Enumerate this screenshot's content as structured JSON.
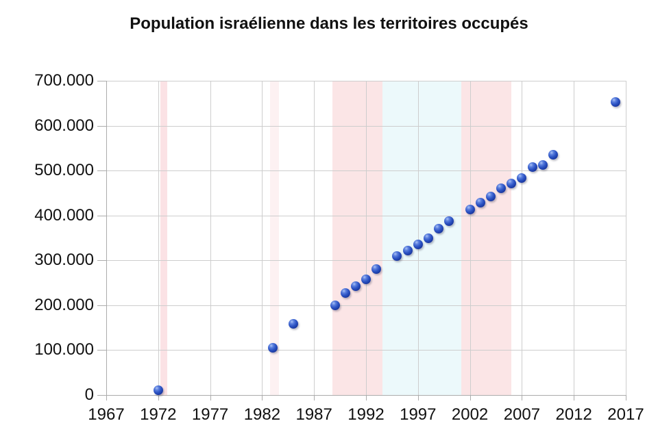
{
  "title": "Population israélienne dans les territoires occupés",
  "chart_data": {
    "type": "scatter",
    "title": "Population israélienne dans les territoires occupés",
    "xlabel": "",
    "ylabel": "",
    "xlim": [
      1967,
      2017
    ],
    "ylim": [
      0,
      700000
    ],
    "grid": true,
    "legend": "none",
    "x_ticks": [
      {
        "value": 1967,
        "label": "1967"
      },
      {
        "value": 1972,
        "label": "1972"
      },
      {
        "value": 1977,
        "label": "1977"
      },
      {
        "value": 1982,
        "label": "1982"
      },
      {
        "value": 1987,
        "label": "1987"
      },
      {
        "value": 1992,
        "label": "1992"
      },
      {
        "value": 1997,
        "label": "1997"
      },
      {
        "value": 2002,
        "label": "2002"
      },
      {
        "value": 2007,
        "label": "2007"
      },
      {
        "value": 2012,
        "label": "2012"
      },
      {
        "value": 2017,
        "label": "2017"
      }
    ],
    "y_ticks": [
      {
        "value": 0,
        "label": "0"
      },
      {
        "value": 100000,
        "label": "100.000"
      },
      {
        "value": 200000,
        "label": "200.000"
      },
      {
        "value": 300000,
        "label": "300.000"
      },
      {
        "value": 400000,
        "label": "400.000"
      },
      {
        "value": 500000,
        "label": "500.000"
      },
      {
        "value": 600000,
        "label": "600.000"
      },
      {
        "value": 700000,
        "label": "700.000"
      }
    ],
    "points": [
      {
        "year": 1972,
        "population": 10500
      },
      {
        "year": 1983,
        "population": 105000
      },
      {
        "year": 1985,
        "population": 158000
      },
      {
        "year": 1989,
        "population": 200000
      },
      {
        "year": 1990,
        "population": 227000
      },
      {
        "year": 1991,
        "population": 242000
      },
      {
        "year": 1992,
        "population": 257000
      },
      {
        "year": 1993,
        "population": 281000
      },
      {
        "year": 1995,
        "population": 310000
      },
      {
        "year": 1996,
        "population": 322000
      },
      {
        "year": 1997,
        "population": 335000
      },
      {
        "year": 1998,
        "population": 350000
      },
      {
        "year": 1999,
        "population": 370000
      },
      {
        "year": 2000,
        "population": 387000
      },
      {
        "year": 2002,
        "population": 414000
      },
      {
        "year": 2003,
        "population": 428000
      },
      {
        "year": 2004,
        "population": 443000
      },
      {
        "year": 2005,
        "population": 460000
      },
      {
        "year": 2006,
        "population": 472000
      },
      {
        "year": 2007,
        "population": 483000
      },
      {
        "year": 2008,
        "population": 508000
      },
      {
        "year": 2009,
        "population": 512000
      },
      {
        "year": 2010,
        "population": 535000
      },
      {
        "year": 2016,
        "population": 653000
      }
    ],
    "bands": [
      {
        "x_start": 1972.2,
        "x_end": 1972.85,
        "color": "#fbe2e5"
      },
      {
        "x_start": 1982.75,
        "x_end": 1983.6,
        "color": "#fdf1f2"
      },
      {
        "x_start": 1988.8,
        "x_end": 1993.6,
        "color": "#fbe5e6"
      },
      {
        "x_start": 1993.6,
        "x_end": 2001.2,
        "color": "#ecf9fb"
      },
      {
        "x_start": 2001.2,
        "x_end": 2006.0,
        "color": "#fbe5e6"
      }
    ],
    "colors": {
      "marker": "#2c53c4",
      "grid": "#cdcdcd",
      "axis": "#ababab",
      "band_pink": "#fbe5e6",
      "band_pink_faint": "#fdf1f2",
      "band_blue": "#ecf9fb"
    }
  }
}
